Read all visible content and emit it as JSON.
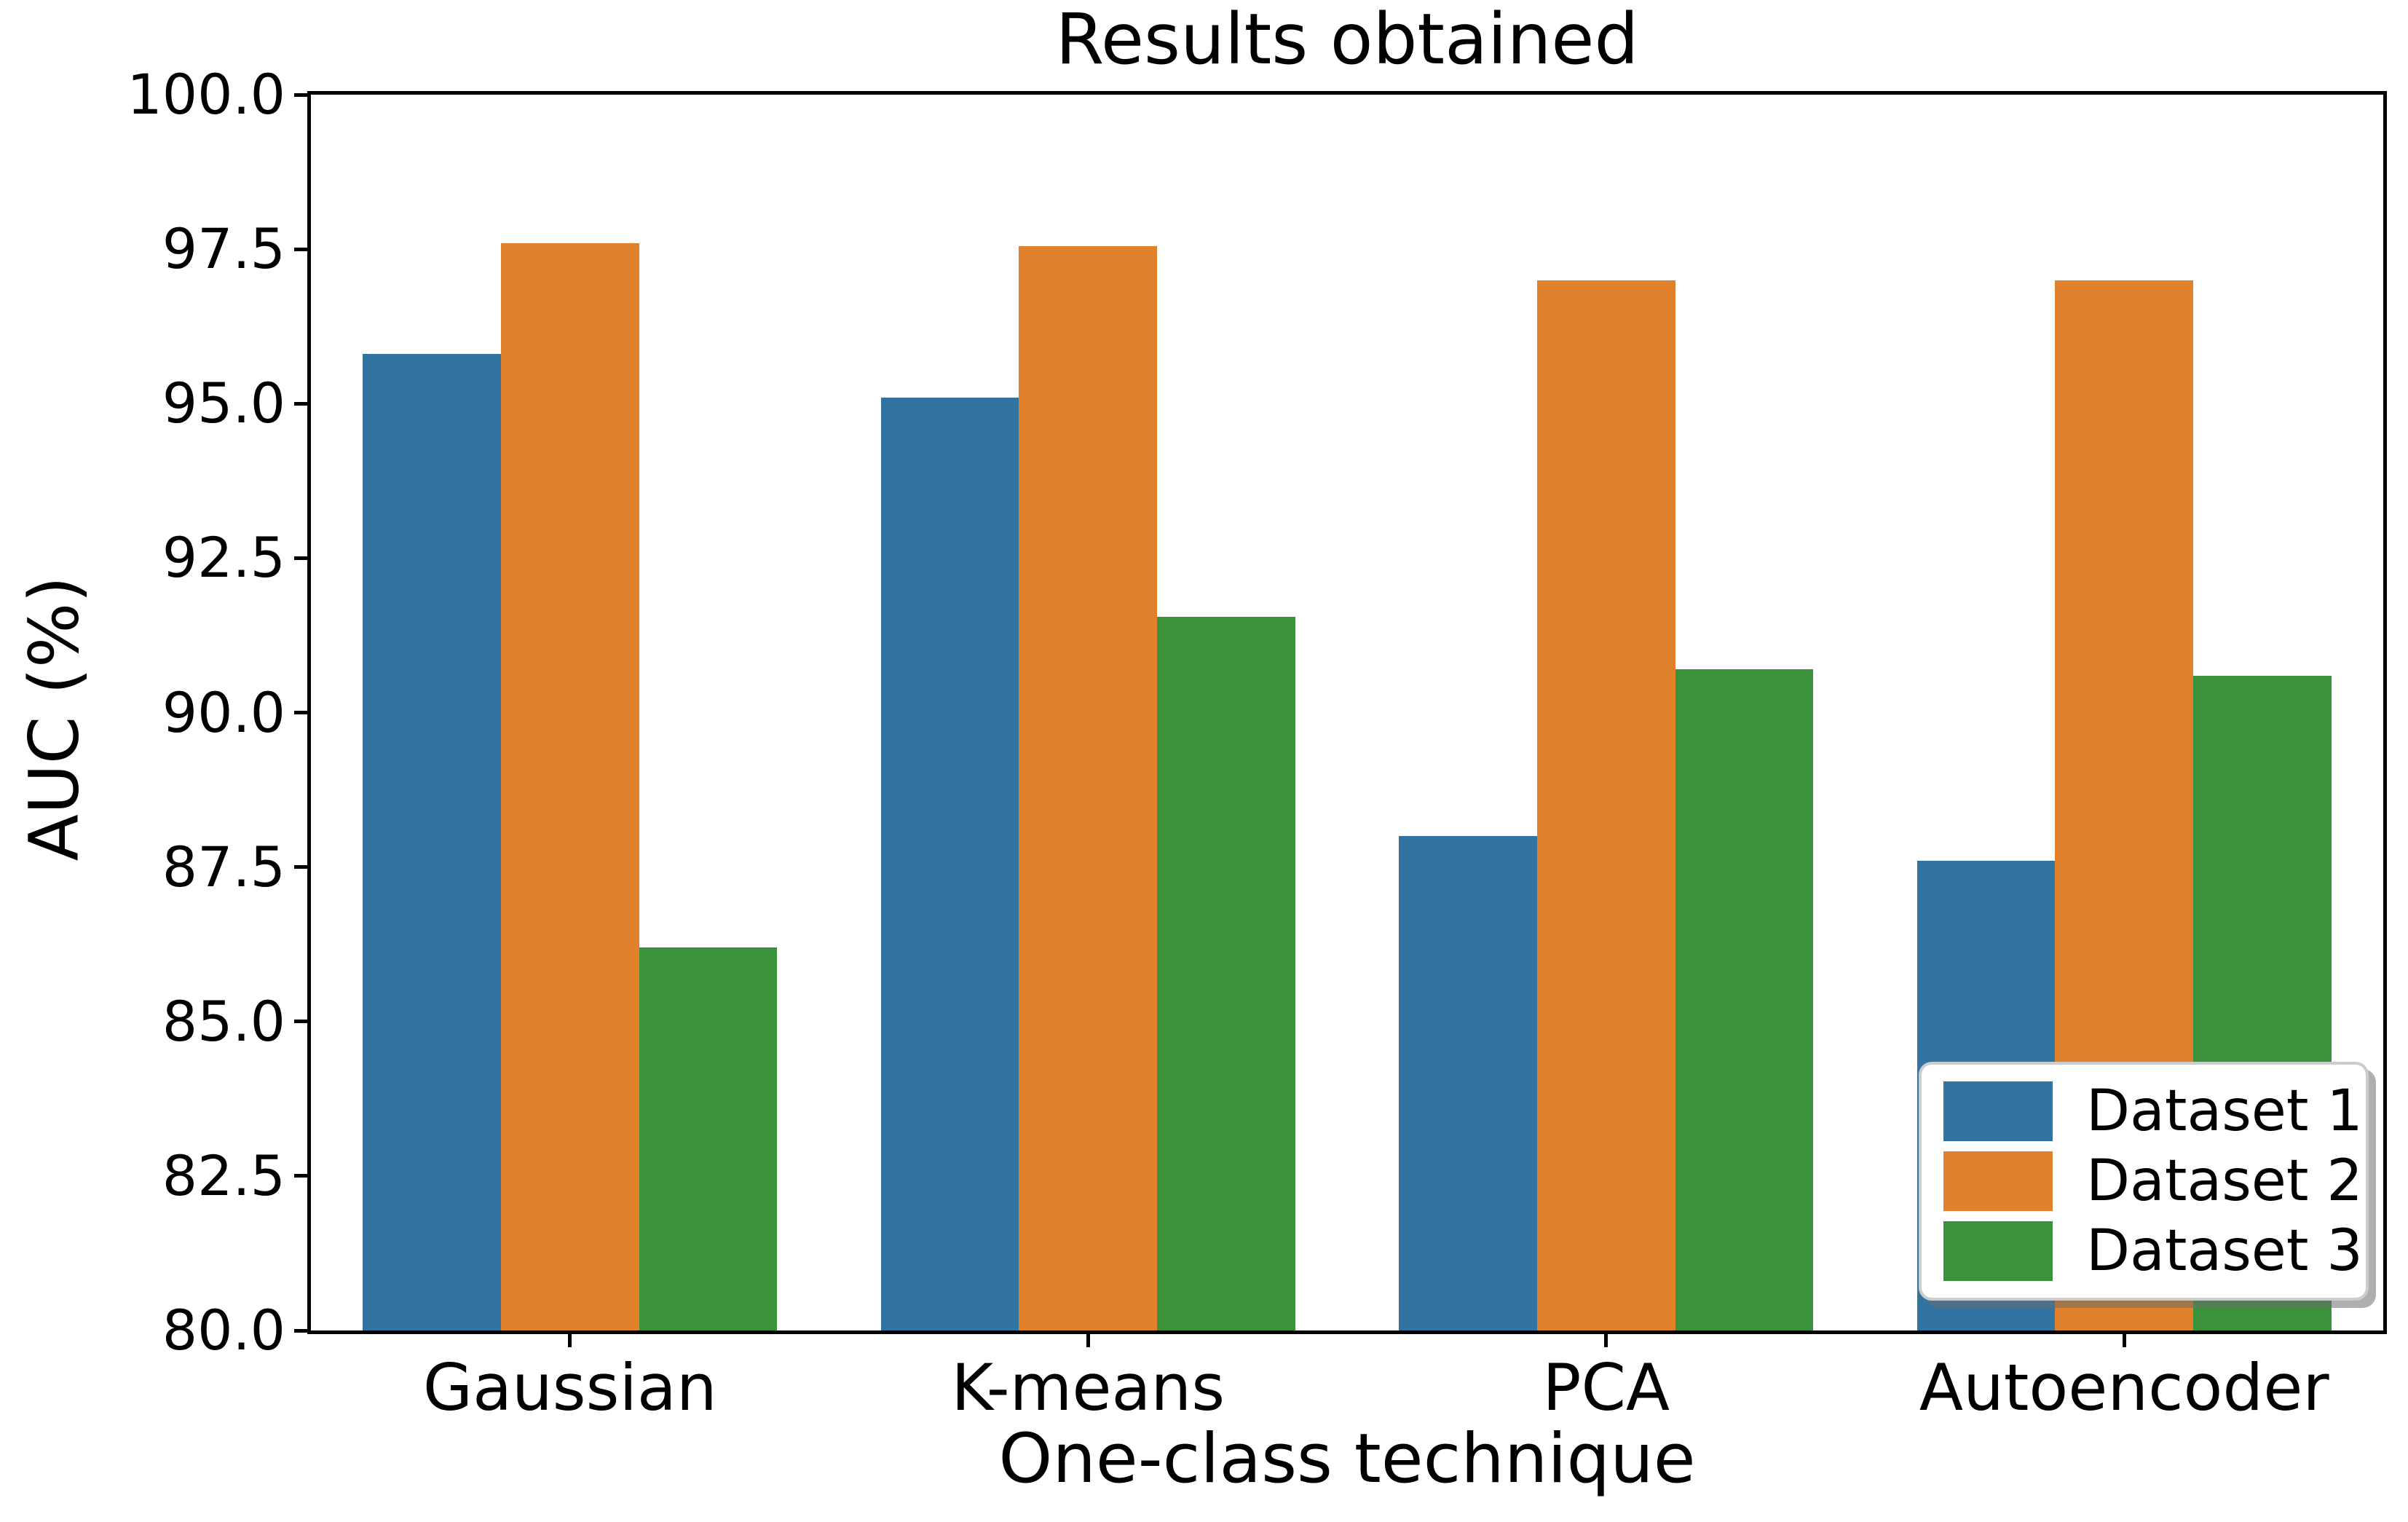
{
  "chart_data": {
    "type": "bar",
    "title": "Results obtained",
    "xlabel": "One-class technique",
    "ylabel": "AUC (%)",
    "categories": [
      "Gaussian",
      "K-means",
      "PCA",
      "Autoencoder"
    ],
    "series": [
      {
        "name": "Dataset 1",
        "color": "#3274a1",
        "values": [
          95.8,
          95.1,
          88.0,
          87.6
        ]
      },
      {
        "name": "Dataset 2",
        "color": "#e1812c",
        "values": [
          97.6,
          97.55,
          97.0,
          97.0
        ]
      },
      {
        "name": "Dataset 3",
        "color": "#3a923a",
        "values": [
          86.2,
          91.55,
          90.7,
          90.6
        ]
      }
    ],
    "ylim": [
      80,
      100
    ],
    "yticks": {
      "values": [
        80,
        82.5,
        85,
        87.5,
        90,
        92.5,
        95,
        97.5,
        100
      ],
      "labels": [
        "80.0",
        "82.5",
        "85.0",
        "87.5",
        "90.0",
        "92.5",
        "95.0",
        "97.5",
        "100.0"
      ]
    },
    "grid": false,
    "legend_position": "lower right",
    "background_color": "#ffffff",
    "text_color": "#000000"
  }
}
